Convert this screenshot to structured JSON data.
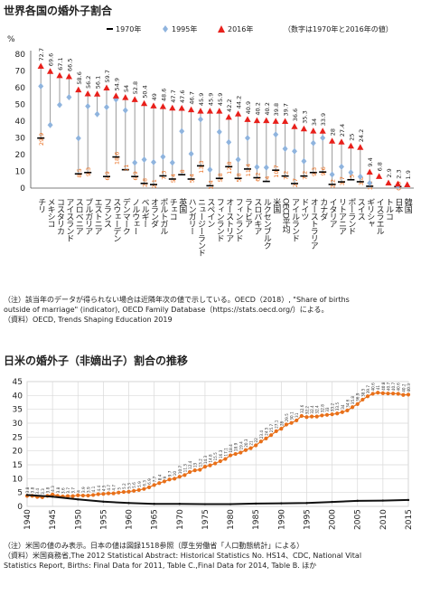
{
  "chart1_title": "世界各国の婚外子割合",
  "chart1_legend_note": "（数字は1970年と2016年の値）",
  "chart1_notes": "（注）該当年のデータが得られない場合は近隣年次の値で示している。OECD（2018）, \"Share of births\noutside of marriage\" (indicator), OECD Family Database（https://stats.oecd.org/）による。\n（資料）OECD, Trends Shaping Education 2019",
  "chart2_title": "日米の婚外子（非嫡出子）割合の推移",
  "chart2_notes": "（注）米国の値のみ表示。日本の値は図録1518参照（厚生労働省「人口動態統計」による）\n（資料）米国商務省,The 2012 Statistical Abstract: Historical Statistics No. HS14、CDC, National Vital\nStatistics Report, Births: Final Data for 2011, Table C.,Final Data for 2014, Table B.  ほか",
  "chart_data": [
    {
      "type": "scatter",
      "title": "世界各国の婚外子割合",
      "ylabel": "%",
      "ylim": [
        0,
        80
      ],
      "yticks": [
        0,
        10,
        20,
        30,
        40,
        50,
        60,
        70,
        80
      ],
      "grid": false,
      "legend_position": "top",
      "series": [
        {
          "name": "1970年",
          "marker": "dash",
          "color": "#000000"
        },
        {
          "name": "1995年",
          "marker": "diamond",
          "color": "#8fb4de"
        },
        {
          "name": "2016年",
          "marker": "triangle",
          "color": "#e8201b"
        }
      ],
      "categories": [
        "チリ",
        "メキシコ",
        "コスタリカ",
        "アイスランド",
        "スロベニア",
        "ブルガリア",
        "エストニア",
        "フランス",
        "スウェーデン",
        "デンマーク",
        "ノルウェー",
        "ベルギー",
        "オランダ",
        "ポルトガル",
        "チェコ",
        "英国",
        "ハンガリー",
        "ニュージーランド",
        "スペイン",
        "フィンランド",
        "オーストリア",
        "フィンランド",
        "ラトビア",
        "スロバキア",
        "ルクセンブルク",
        "米国",
        "OECD平均",
        "アイルランド",
        "ドイツ",
        "オーストラリア",
        "カナダ",
        "イタリア",
        "リトアニア",
        "ポーランド",
        "スイス",
        "ギリシャ",
        "イスラエル",
        "トルコ",
        "日本",
        "韓国"
      ],
      "v1970": [
        29.9,
        null,
        null,
        null,
        8.5,
        9.3,
        null,
        6.9,
        18.6,
        11.0,
        6.9,
        2.8,
        2.1,
        7.3,
        5.4,
        8.0,
        5.4,
        13.3,
        1.4,
        5.8,
        12.8,
        5.8,
        11.4,
        6.2,
        4.0,
        10.7,
        7.2,
        2.7,
        7.2,
        9.3,
        9.6,
        2.2,
        3.7,
        5.0,
        3.8,
        1.1,
        null,
        null,
        0.9,
        null
      ],
      "v1995": [
        60.9,
        37.7,
        49.7,
        54.3,
        29.8,
        48.9,
        44.2,
        48.4,
        53.0,
        46.5,
        15.2,
        17.0,
        15.5,
        18.7,
        15.2,
        34.0,
        20.5,
        41.1,
        11.0,
        33.6,
        27.4,
        17.1,
        29.9,
        12.6,
        12.3,
        32.0,
        23.5,
        22.0,
        16.1,
        26.9,
        30.0,
        8.1,
        12.8,
        9.3,
        6.8,
        3.0,
        null,
        null,
        1.2,
        null
      ],
      "v2016": [
        72.7,
        69.6,
        67.1,
        66.5,
        58.6,
        56.2,
        56.1,
        59.7,
        54.9,
        54.0,
        52.8,
        50.4,
        49.0,
        48.6,
        47.7,
        47.6,
        46.7,
        45.9,
        45.9,
        45.9,
        42.2,
        44.2,
        40.9,
        40.2,
        40.2,
        39.8,
        39.7,
        36.6,
        35.3,
        34.0,
        33.9,
        28.0,
        27.4,
        25.0,
        24.2,
        9.4,
        6.8,
        2.9,
        2.3,
        1.9
      ]
    },
    {
      "type": "line",
      "title": "日米の婚外子（非嫡出子）割合の推移",
      "xlabel": "",
      "ylabel": "",
      "xlim": [
        1940,
        2015
      ],
      "ylim": [
        0,
        45
      ],
      "xticks": [
        1940,
        1945,
        1950,
        1955,
        1960,
        1965,
        1970,
        1975,
        1980,
        1985,
        1990,
        1995,
        2000,
        2005,
        2010,
        2015
      ],
      "yticks": [
        0,
        5,
        10,
        15,
        20,
        25,
        30,
        35,
        40,
        45
      ],
      "grid": true,
      "series": [
        {
          "name": "米国",
          "color": "#e8701a",
          "data_labels": true,
          "x": [
            1940,
            1941,
            1942,
            1943,
            1944,
            1945,
            1946,
            1947,
            1948,
            1949,
            1950,
            1951,
            1952,
            1953,
            1954,
            1955,
            1956,
            1957,
            1958,
            1959,
            1960,
            1961,
            1962,
            1963,
            1964,
            1965,
            1966,
            1967,
            1968,
            1969,
            1970,
            1971,
            1972,
            1973,
            1974,
            1975,
            1976,
            1977,
            1978,
            1979,
            1980,
            1981,
            1982,
            1983,
            1984,
            1985,
            1986,
            1987,
            1988,
            1989,
            1990,
            1991,
            1992,
            1993,
            1994,
            1995,
            1996,
            1997,
            1998,
            1999,
            2000,
            2001,
            2002,
            2003,
            2004,
            2005,
            2006,
            2007,
            2008,
            2009,
            2010,
            2011,
            2012,
            2013,
            2014,
            2015
          ],
          "y": [
            3.8,
            3.8,
            3.4,
            3.3,
            3.8,
            4.3,
            3.8,
            3.6,
            3.7,
            3.7,
            4.0,
            3.9,
            3.9,
            4.1,
            4.4,
            4.5,
            4.7,
            4.7,
            5.0,
            5.2,
            5.3,
            5.6,
            5.9,
            6.3,
            6.9,
            7.7,
            8.4,
            9.0,
            9.7,
            10.0,
            10.7,
            11.3,
            12.4,
            13.0,
            13.2,
            14.3,
            14.8,
            15.5,
            16.3,
            17.1,
            18.4,
            18.9,
            19.4,
            20.3,
            21.0,
            22.0,
            23.4,
            24.5,
            25.7,
            27.1,
            28.0,
            29.5,
            30.1,
            31.0,
            32.6,
            32.2,
            32.4,
            32.4,
            32.8,
            33.0,
            33.2,
            33.5,
            34.0,
            34.6,
            35.8,
            36.9,
            38.5,
            39.7,
            40.6,
            41.0,
            40.8,
            40.7,
            40.7,
            40.6,
            40.2,
            40.3
          ]
        },
        {
          "name": "日本",
          "color": "#111111",
          "data_labels": false,
          "x": [
            1940,
            1945,
            1950,
            1955,
            1960,
            1965,
            1970,
            1975,
            1980,
            1985,
            1990,
            1995,
            2000,
            2005,
            2010,
            2015
          ],
          "y": [
            4.1,
            3.5,
            2.5,
            1.7,
            1.2,
            0.9,
            0.9,
            0.8,
            0.8,
            1.0,
            1.1,
            1.2,
            1.6,
            2.0,
            2.1,
            2.3
          ]
        }
      ]
    }
  ]
}
